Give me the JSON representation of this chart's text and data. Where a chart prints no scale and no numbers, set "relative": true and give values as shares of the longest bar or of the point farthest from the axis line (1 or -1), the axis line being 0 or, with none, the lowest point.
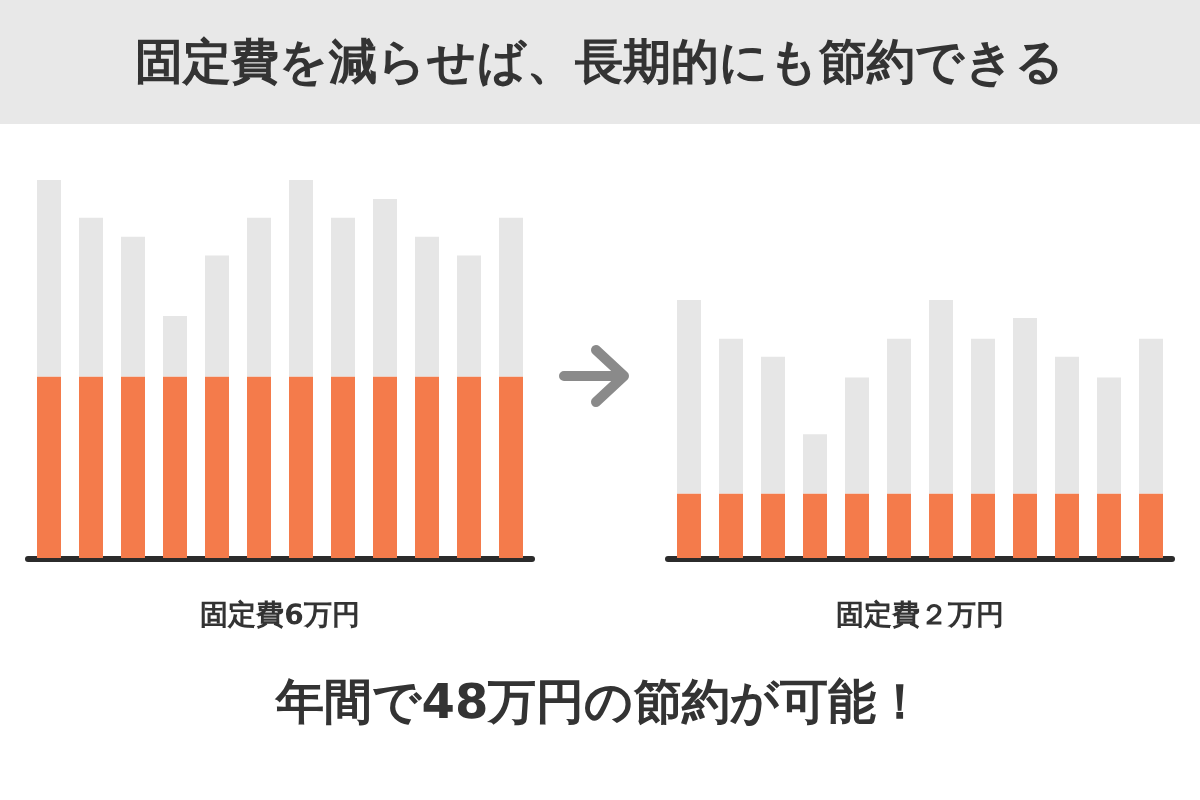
{
  "chart_data": [
    {
      "type": "bar",
      "title": "固定費を減らせば、長期的にも節約できる",
      "xlabel": "固定費6万円",
      "relative": true,
      "stacked": true,
      "categories": [
        null,
        null,
        null,
        null,
        null,
        null,
        null,
        null,
        null,
        null,
        null,
        null
      ],
      "series": [
        {
          "color": "#f47b4b",
          "values": [
            0.48,
            0.48,
            0.48,
            0.48,
            0.48,
            0.48,
            0.48,
            0.48,
            0.48,
            0.48,
            0.48,
            0.48
          ]
        },
        {
          "color": "#e6e6e6",
          "values": [
            0.52,
            0.42,
            0.37,
            0.16,
            0.32,
            0.42,
            0.52,
            0.42,
            0.47,
            0.37,
            0.32,
            0.42
          ]
        }
      ]
    },
    {
      "type": "bar",
      "xlabel": "固定費２万円",
      "annotations": [
        "年間で48万円の節約が可能！"
      ],
      "relative": true,
      "stacked": true,
      "categories": [
        null,
        null,
        null,
        null,
        null,
        null,
        null,
        null,
        null,
        null,
        null,
        null
      ],
      "series": [
        {
          "color": "#f47b4b",
          "values": [
            0.25,
            0.25,
            0.25,
            0.25,
            0.25,
            0.25,
            0.25,
            0.25,
            0.25,
            0.25,
            0.25,
            0.25
          ]
        },
        {
          "color": "#e6e6e6",
          "values": [
            0.75,
            0.6,
            0.53,
            0.23,
            0.45,
            0.6,
            0.75,
            0.6,
            0.68,
            0.53,
            0.45,
            0.6
          ]
        }
      ]
    }
  ]
}
